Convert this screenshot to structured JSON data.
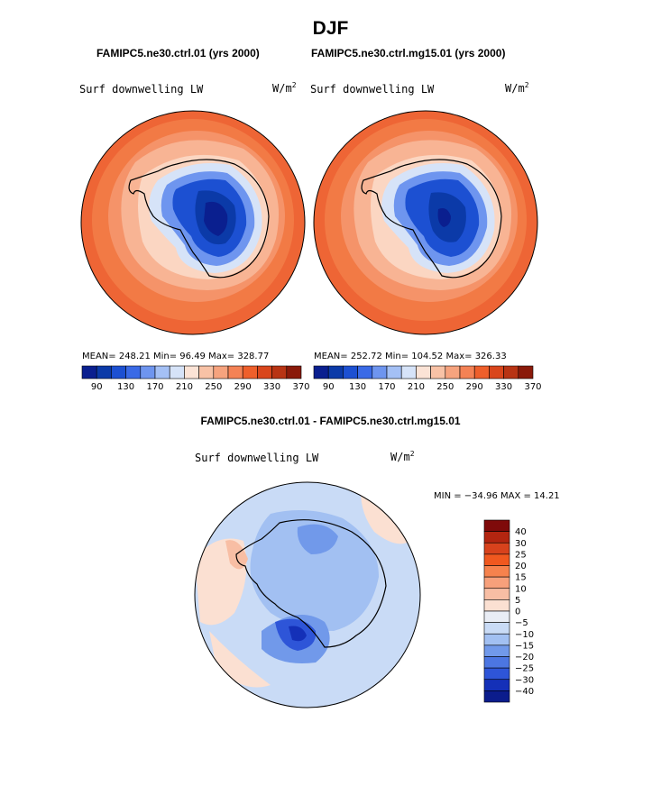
{
  "page": {
    "title": "DJF",
    "diff_title": "FAMIPC5.ne30.ctrl.01 - FAMIPC5.ne30.ctrl.mg15.01"
  },
  "panels": [
    {
      "case": "FAMIPC5.ne30.ctrl.01 (yrs 2000)",
      "variable": "Surf downwelling LW",
      "units_base": "W/m",
      "units_exp": "2",
      "stats": "MEAN= 248.21   Min=  96.49   Max= 328.77",
      "colorbar_labels": [
        "90",
        "130",
        "170",
        "210",
        "250",
        "290",
        "330",
        "370"
      ]
    },
    {
      "case": "FAMIPC5.ne30.ctrl.mg15.01 (yrs 2000)",
      "variable": "Surf downwelling LW",
      "units_base": "W/m",
      "units_exp": "2",
      "stats": "MEAN= 252.72   Min= 104.52   Max= 326.33",
      "colorbar_labels": [
        "90",
        "130",
        "170",
        "210",
        "250",
        "290",
        "330",
        "370"
      ]
    }
  ],
  "diff_panel": {
    "variable": "Surf downwelling LW",
    "units_base": "W/m",
    "units_exp": "2",
    "stats": "MIN = −34.96 MAX =  14.21",
    "colorbar_labels": [
      "40",
      "30",
      "25",
      "20",
      "15",
      "10",
      "5",
      "0",
      "−5",
      "−10",
      "−15",
      "−20",
      "−25",
      "−30",
      "−40"
    ]
  },
  "colors": {
    "abs_levels": [
      "#0a1f8f",
      "#0b3aa8",
      "#1c50d2",
      "#3a6ae6",
      "#6e95ef",
      "#a4c0f5",
      "#d6e3f8",
      "#fbe3d6",
      "#f8c2a6",
      "#f6a37e",
      "#f48255",
      "#ee5f2b",
      "#d9461c",
      "#b83414",
      "#8a1a0a"
    ],
    "diff_levels": [
      "#7f0a0a",
      "#b32510",
      "#d8421c",
      "#f0581f",
      "#f6824d",
      "#f7a07b",
      "#f8bea4",
      "#fbe0d2",
      "#e9edf5",
      "#c9dbf6",
      "#a2c0f2",
      "#7199ea",
      "#4c76e2",
      "#2e55d8",
      "#1430b8",
      "#0b1c8c"
    ]
  },
  "chart_data": [
    {
      "type": "heatmap",
      "title": "FAMIPC5.ne30.ctrl.01 (yrs 2000)",
      "variable": "Surf downwelling LW",
      "units": "W/m2",
      "projection": "south polar stereographic",
      "contour_levels": [
        90,
        130,
        170,
        210,
        250,
        290,
        330,
        370
      ],
      "mean": 248.21,
      "min": 96.49,
      "max": 328.77
    },
    {
      "type": "heatmap",
      "title": "FAMIPC5.ne30.ctrl.mg15.01 (yrs 2000)",
      "variable": "Surf downwelling LW",
      "units": "W/m2",
      "projection": "south polar stereographic",
      "contour_levels": [
        90,
        130,
        170,
        210,
        250,
        290,
        330,
        370
      ],
      "mean": 252.72,
      "min": 104.52,
      "max": 326.33
    },
    {
      "type": "heatmap",
      "title": "FAMIPC5.ne30.ctrl.01 - FAMIPC5.ne30.ctrl.mg15.01",
      "variable": "Surf downwelling LW",
      "units": "W/m2",
      "projection": "south polar stereographic",
      "contour_levels": [
        -40,
        -30,
        -25,
        -20,
        -15,
        -10,
        -5,
        0,
        5,
        10,
        15,
        20,
        25,
        30,
        40
      ],
      "min": -34.96,
      "max": 14.21
    }
  ]
}
